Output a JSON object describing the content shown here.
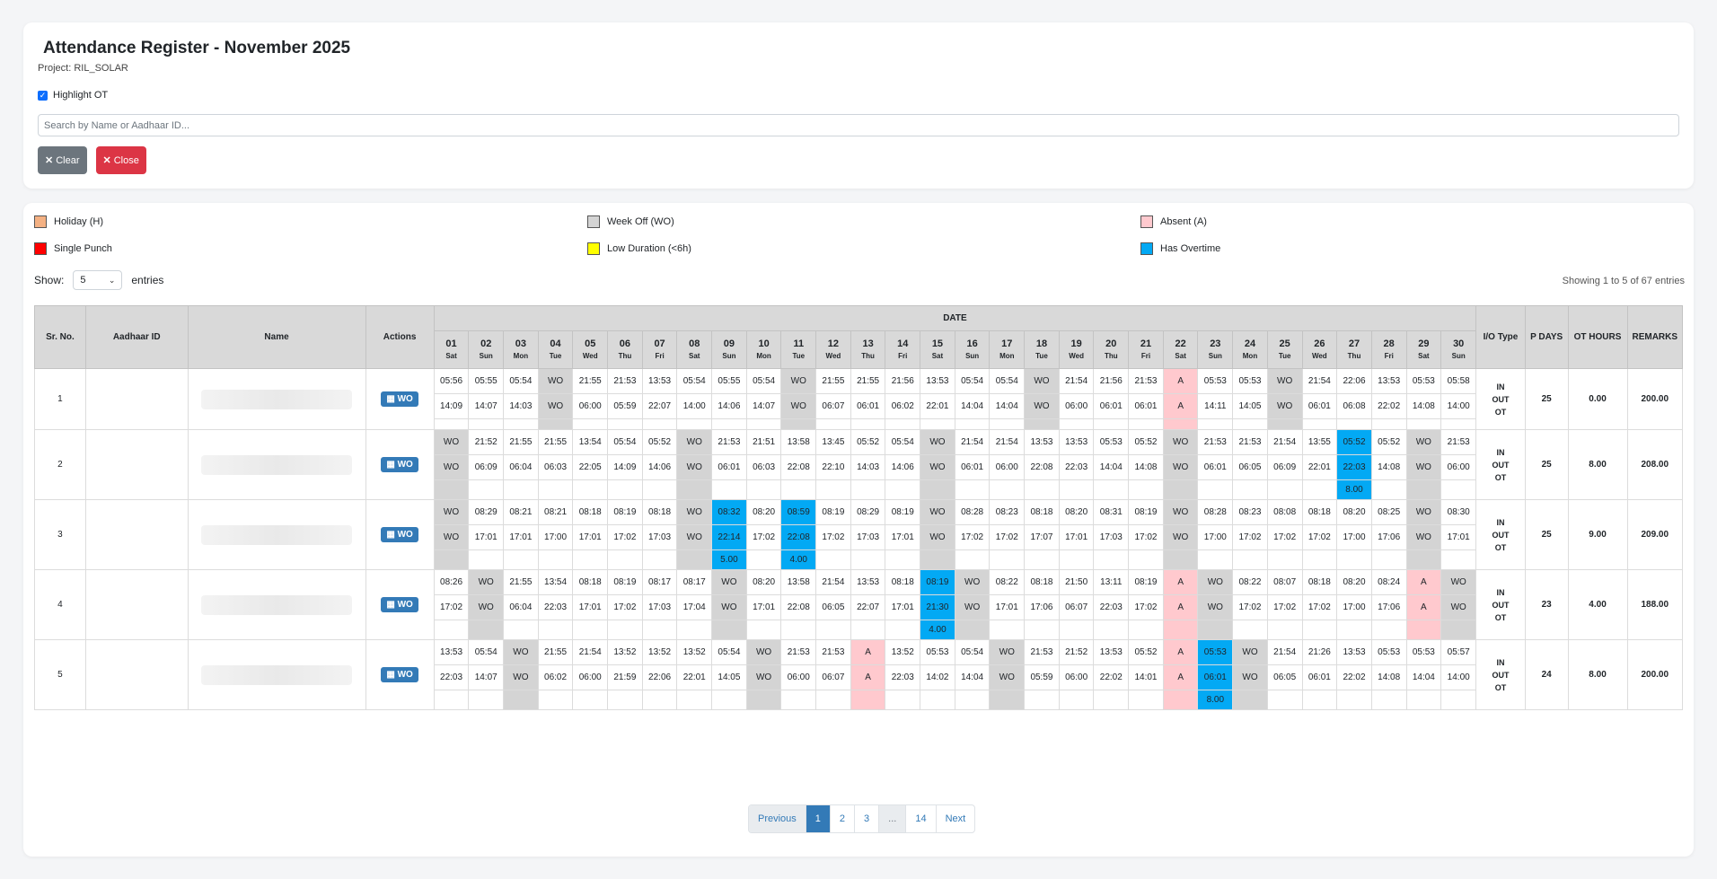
{
  "header": {
    "title": "Attendance Register - November 2025",
    "project": "Project: RIL_SOLAR",
    "highlight_ot_label": "Highlight OT",
    "search_placeholder": "Search by Name or Aadhaar ID...",
    "clear_label": "Clear",
    "close_label": "Close"
  },
  "legend": [
    {
      "label": "Holiday (H)",
      "color": "#f4b183"
    },
    {
      "label": "Week Off (WO)",
      "color": "#d4d4d4"
    },
    {
      "label": "Absent (A)",
      "color": "#ffc9ce"
    },
    {
      "label": "Single Punch",
      "color": "#ff0000"
    },
    {
      "label": "Low Duration (<6h)",
      "color": "#ffff00"
    },
    {
      "label": "Has Overtime",
      "color": "#03a9f4"
    }
  ],
  "controls": {
    "show_label": "Show:",
    "entries_value": "5",
    "entries_label": "entries",
    "showing_text": "Showing 1 to 5 of 67 entries"
  },
  "table": {
    "headers": {
      "sr": "Sr. No.",
      "aadhaar": "Aadhaar ID",
      "name": "Name",
      "actions": "Actions",
      "date": "DATE",
      "io": "I/O Type",
      "pdays": "P DAYS",
      "othours": "OT HOURS",
      "remarks": "REMARKS"
    },
    "days": [
      {
        "d": "01",
        "w": "Sat"
      },
      {
        "d": "02",
        "w": "Sun"
      },
      {
        "d": "03",
        "w": "Mon"
      },
      {
        "d": "04",
        "w": "Tue"
      },
      {
        "d": "05",
        "w": "Wed"
      },
      {
        "d": "06",
        "w": "Thu"
      },
      {
        "d": "07",
        "w": "Fri"
      },
      {
        "d": "08",
        "w": "Sat"
      },
      {
        "d": "09",
        "w": "Sun"
      },
      {
        "d": "10",
        "w": "Mon"
      },
      {
        "d": "11",
        "w": "Tue"
      },
      {
        "d": "12",
        "w": "Wed"
      },
      {
        "d": "13",
        "w": "Thu"
      },
      {
        "d": "14",
        "w": "Fri"
      },
      {
        "d": "15",
        "w": "Sat"
      },
      {
        "d": "16",
        "w": "Sun"
      },
      {
        "d": "17",
        "w": "Mon"
      },
      {
        "d": "18",
        "w": "Tue"
      },
      {
        "d": "19",
        "w": "Wed"
      },
      {
        "d": "20",
        "w": "Thu"
      },
      {
        "d": "21",
        "w": "Fri"
      },
      {
        "d": "22",
        "w": "Sat"
      },
      {
        "d": "23",
        "w": "Sun"
      },
      {
        "d": "24",
        "w": "Mon"
      },
      {
        "d": "25",
        "w": "Tue"
      },
      {
        "d": "26",
        "w": "Wed"
      },
      {
        "d": "27",
        "w": "Thu"
      },
      {
        "d": "28",
        "w": "Fri"
      },
      {
        "d": "29",
        "w": "Sat"
      },
      {
        "d": "30",
        "w": "Sun"
      }
    ],
    "action_label": "WO",
    "io_lines": [
      "IN",
      "OUT",
      "OT"
    ],
    "rows": [
      {
        "sr": "1",
        "pdays": "25",
        "ot_hours": "0.00",
        "remarks": "200.00",
        "cells": [
          [
            "05:56",
            "14:09",
            ""
          ],
          [
            "05:55",
            "14:07",
            ""
          ],
          [
            "05:54",
            "14:03",
            ""
          ],
          [
            "WO",
            "WO",
            "",
            1
          ],
          [
            "21:55",
            "06:00",
            ""
          ],
          [
            "21:53",
            "05:59",
            ""
          ],
          [
            "13:53",
            "22:07",
            ""
          ],
          [
            "05:54",
            "14:00",
            ""
          ],
          [
            "05:55",
            "14:06",
            ""
          ],
          [
            "05:54",
            "14:07",
            ""
          ],
          [
            "WO",
            "WO",
            "",
            1
          ],
          [
            "21:55",
            "06:07",
            ""
          ],
          [
            "21:55",
            "06:01",
            ""
          ],
          [
            "21:56",
            "06:02",
            ""
          ],
          [
            "13:53",
            "22:01",
            ""
          ],
          [
            "05:54",
            "14:04",
            ""
          ],
          [
            "05:54",
            "14:04",
            ""
          ],
          [
            "WO",
            "WO",
            "",
            1
          ],
          [
            "21:54",
            "06:00",
            ""
          ],
          [
            "21:56",
            "06:01",
            ""
          ],
          [
            "21:53",
            "06:01",
            ""
          ],
          [
            "A",
            "A",
            "",
            2
          ],
          [
            "05:53",
            "14:11",
            ""
          ],
          [
            "05:53",
            "14:05",
            ""
          ],
          [
            "WO",
            "WO",
            "",
            1
          ],
          [
            "21:54",
            "06:01",
            ""
          ],
          [
            "22:06",
            "06:08",
            ""
          ],
          [
            "13:53",
            "22:02",
            ""
          ],
          [
            "05:53",
            "14:08",
            ""
          ],
          [
            "05:58",
            "14:00",
            ""
          ]
        ]
      },
      {
        "sr": "2",
        "pdays": "25",
        "ot_hours": "8.00",
        "remarks": "208.00",
        "cells": [
          [
            "WO",
            "WO",
            "",
            1
          ],
          [
            "21:52",
            "06:09",
            ""
          ],
          [
            "21:55",
            "06:04",
            ""
          ],
          [
            "21:55",
            "06:03",
            ""
          ],
          [
            "13:54",
            "22:05",
            ""
          ],
          [
            "05:54",
            "14:09",
            ""
          ],
          [
            "05:52",
            "14:06",
            ""
          ],
          [
            "WO",
            "WO",
            "",
            1
          ],
          [
            "21:53",
            "06:01",
            ""
          ],
          [
            "21:51",
            "06:03",
            ""
          ],
          [
            "13:58",
            "22:08",
            ""
          ],
          [
            "13:45",
            "22:10",
            ""
          ],
          [
            "05:52",
            "14:03",
            ""
          ],
          [
            "05:54",
            "14:06",
            ""
          ],
          [
            "WO",
            "WO",
            "",
            1
          ],
          [
            "21:54",
            "06:01",
            ""
          ],
          [
            "21:54",
            "06:00",
            ""
          ],
          [
            "13:53",
            "22:08",
            ""
          ],
          [
            "13:53",
            "22:03",
            ""
          ],
          [
            "05:53",
            "14:04",
            ""
          ],
          [
            "05:52",
            "14:08",
            ""
          ],
          [
            "WO",
            "WO",
            "",
            1
          ],
          [
            "21:53",
            "06:01",
            ""
          ],
          [
            "21:53",
            "06:05",
            ""
          ],
          [
            "21:54",
            "06:09",
            ""
          ],
          [
            "13:55",
            "22:01",
            ""
          ],
          [
            "05:52",
            "22:03",
            "8.00",
            3
          ],
          [
            "05:52",
            "14:08",
            ""
          ],
          [
            "WO",
            "WO",
            "",
            1
          ],
          [
            "21:53",
            "06:00",
            ""
          ]
        ]
      },
      {
        "sr": "3",
        "pdays": "25",
        "ot_hours": "9.00",
        "remarks": "209.00",
        "cells": [
          [
            "WO",
            "WO",
            "",
            1
          ],
          [
            "08:29",
            "17:01",
            ""
          ],
          [
            "08:21",
            "17:01",
            ""
          ],
          [
            "08:21",
            "17:00",
            ""
          ],
          [
            "08:18",
            "17:01",
            ""
          ],
          [
            "08:19",
            "17:02",
            ""
          ],
          [
            "08:18",
            "17:03",
            ""
          ],
          [
            "WO",
            "WO",
            "",
            1
          ],
          [
            "08:32",
            "22:14",
            "5.00",
            3
          ],
          [
            "08:20",
            "17:02",
            ""
          ],
          [
            "08:59",
            "22:08",
            "4.00",
            3
          ],
          [
            "08:19",
            "17:02",
            ""
          ],
          [
            "08:29",
            "17:03",
            ""
          ],
          [
            "08:19",
            "17:01",
            ""
          ],
          [
            "WO",
            "WO",
            "",
            1
          ],
          [
            "08:28",
            "17:02",
            ""
          ],
          [
            "08:23",
            "17:02",
            ""
          ],
          [
            "08:18",
            "17:07",
            ""
          ],
          [
            "08:20",
            "17:01",
            ""
          ],
          [
            "08:31",
            "17:03",
            ""
          ],
          [
            "08:19",
            "17:02",
            ""
          ],
          [
            "WO",
            "WO",
            "",
            1
          ],
          [
            "08:28",
            "17:00",
            ""
          ],
          [
            "08:23",
            "17:02",
            ""
          ],
          [
            "08:08",
            "17:02",
            ""
          ],
          [
            "08:18",
            "17:02",
            ""
          ],
          [
            "08:20",
            "17:00",
            ""
          ],
          [
            "08:25",
            "17:06",
            ""
          ],
          [
            "WO",
            "WO",
            "",
            1
          ],
          [
            "08:30",
            "17:01",
            ""
          ]
        ]
      },
      {
        "sr": "4",
        "pdays": "23",
        "ot_hours": "4.00",
        "remarks": "188.00",
        "cells": [
          [
            "08:26",
            "17:02",
            ""
          ],
          [
            "WO",
            "WO",
            "",
            1
          ],
          [
            "21:55",
            "06:04",
            ""
          ],
          [
            "13:54",
            "22:03",
            ""
          ],
          [
            "08:18",
            "17:01",
            ""
          ],
          [
            "08:19",
            "17:02",
            ""
          ],
          [
            "08:17",
            "17:03",
            ""
          ],
          [
            "08:17",
            "17:04",
            ""
          ],
          [
            "WO",
            "WO",
            "",
            1
          ],
          [
            "08:20",
            "17:01",
            ""
          ],
          [
            "13:58",
            "22:08",
            ""
          ],
          [
            "21:54",
            "06:05",
            ""
          ],
          [
            "13:53",
            "22:07",
            ""
          ],
          [
            "08:18",
            "17:01",
            ""
          ],
          [
            "08:19",
            "21:30",
            "4.00",
            3
          ],
          [
            "WO",
            "WO",
            "",
            1
          ],
          [
            "08:22",
            "17:01",
            ""
          ],
          [
            "08:18",
            "17:06",
            ""
          ],
          [
            "21:50",
            "06:07",
            ""
          ],
          [
            "13:11",
            "22:03",
            ""
          ],
          [
            "08:19",
            "17:02",
            ""
          ],
          [
            "A",
            "A",
            "",
            2
          ],
          [
            "WO",
            "WO",
            "",
            1
          ],
          [
            "08:22",
            "17:02",
            ""
          ],
          [
            "08:07",
            "17:02",
            ""
          ],
          [
            "08:18",
            "17:02",
            ""
          ],
          [
            "08:20",
            "17:00",
            ""
          ],
          [
            "08:24",
            "17:06",
            ""
          ],
          [
            "A",
            "A",
            "",
            2
          ],
          [
            "WO",
            "WO",
            "",
            1
          ]
        ]
      },
      {
        "sr": "5",
        "pdays": "24",
        "ot_hours": "8.00",
        "remarks": "200.00",
        "cells": [
          [
            "13:53",
            "22:03",
            ""
          ],
          [
            "05:54",
            "14:07",
            ""
          ],
          [
            "WO",
            "WO",
            "",
            1
          ],
          [
            "21:55",
            "06:02",
            ""
          ],
          [
            "21:54",
            "06:00",
            ""
          ],
          [
            "13:52",
            "21:59",
            ""
          ],
          [
            "13:52",
            "22:06",
            ""
          ],
          [
            "13:52",
            "22:01",
            ""
          ],
          [
            "05:54",
            "14:05",
            ""
          ],
          [
            "WO",
            "WO",
            "",
            1
          ],
          [
            "21:53",
            "06:00",
            ""
          ],
          [
            "21:53",
            "06:07",
            ""
          ],
          [
            "A",
            "A",
            "",
            2
          ],
          [
            "13:52",
            "22:03",
            ""
          ],
          [
            "05:53",
            "14:02",
            ""
          ],
          [
            "05:54",
            "14:04",
            ""
          ],
          [
            "WO",
            "WO",
            "",
            1
          ],
          [
            "21:53",
            "05:59",
            ""
          ],
          [
            "21:52",
            "06:00",
            ""
          ],
          [
            "13:53",
            "22:02",
            ""
          ],
          [
            "05:52",
            "14:01",
            ""
          ],
          [
            "A",
            "A",
            "",
            2
          ],
          [
            "05:53",
            "06:01",
            "8.00",
            3
          ],
          [
            "WO",
            "WO",
            "",
            1
          ],
          [
            "21:54",
            "06:05",
            ""
          ],
          [
            "21:26",
            "06:01",
            ""
          ],
          [
            "13:53",
            "22:02",
            ""
          ],
          [
            "05:53",
            "14:08",
            ""
          ],
          [
            "05:53",
            "14:04",
            ""
          ],
          [
            "05:57",
            "14:00",
            ""
          ]
        ]
      }
    ]
  },
  "pagination": {
    "previous": "Previous",
    "pages": [
      "1",
      "2",
      "3",
      "...",
      "14"
    ],
    "next": "Next"
  }
}
